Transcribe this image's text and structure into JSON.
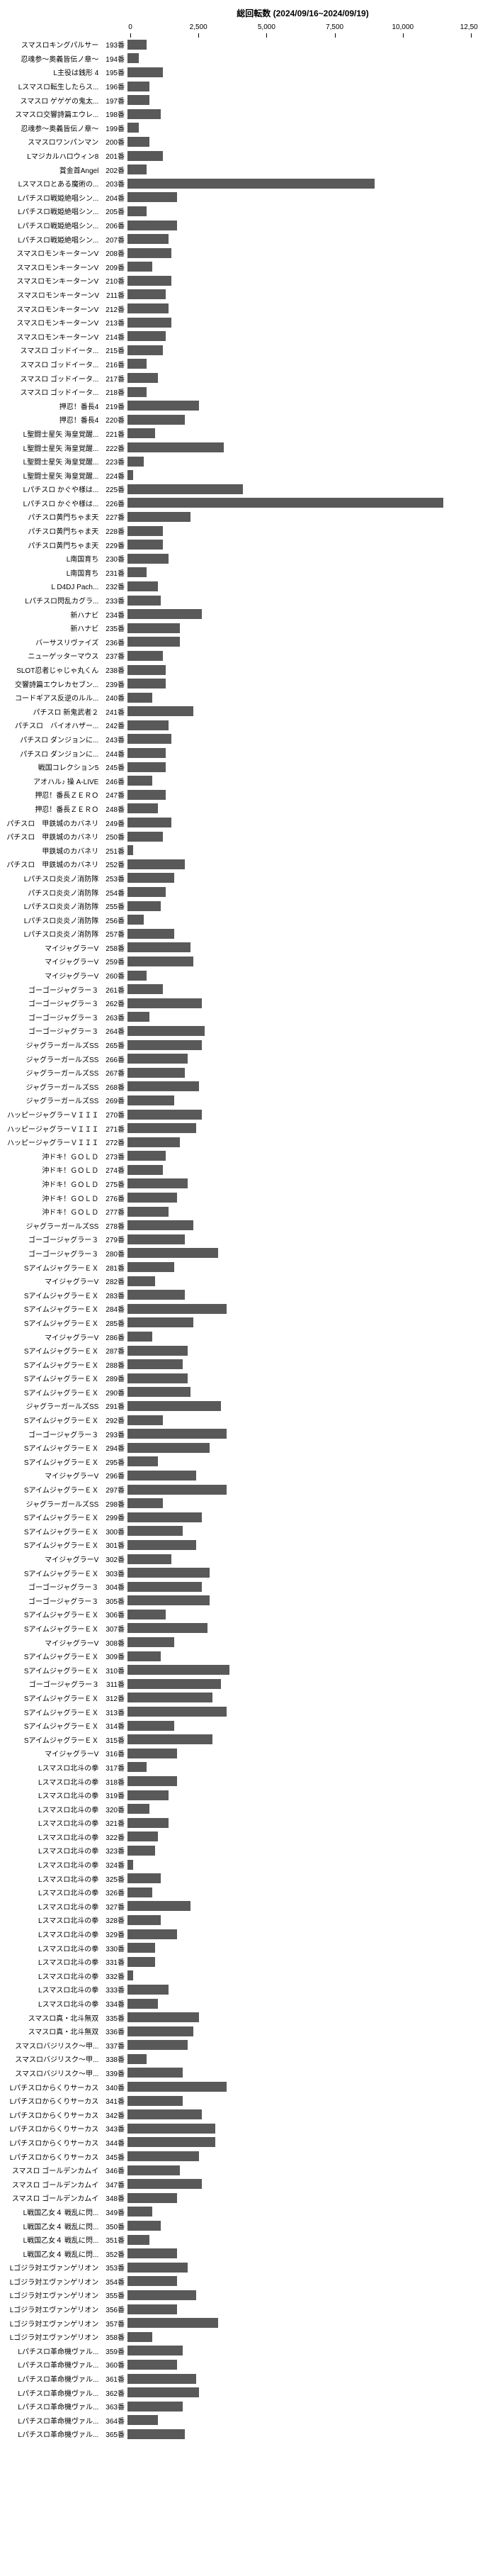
{
  "chart": {
    "type": "bar-horizontal",
    "title": "総回転数 (2024/09/16~2024/09/19)",
    "xlim": [
      0,
      12500
    ],
    "xticks": [
      0,
      2500,
      5000,
      7500,
      10000,
      12500
    ],
    "bar_color": "#595959",
    "background_color": "#ffffff",
    "label_fontsize": 10,
    "title_fontsize": 12,
    "rows": [
      {
        "label": "スマスロキングパルサー",
        "num": "193番",
        "value": 700
      },
      {
        "label": "忍魂参～奥義皆伝ノ章～",
        "num": "194番",
        "value": 400
      },
      {
        "label": "L主役は銭形 4",
        "num": "195番",
        "value": 1300
      },
      {
        "label": "Lスマスロ転生したらス...",
        "num": "196番",
        "value": 800
      },
      {
        "label": "スマスロ ゲゲゲの鬼太...",
        "num": "197番",
        "value": 800
      },
      {
        "label": "スマスロ交響詩篇エウレ...",
        "num": "198番",
        "value": 1200
      },
      {
        "label": "忍魂参～奥義皆伝ノ章～",
        "num": "199番",
        "value": 400
      },
      {
        "label": "スマスロワンパンマン",
        "num": "200番",
        "value": 800
      },
      {
        "label": "Lマジカルハロウィン8",
        "num": "201番",
        "value": 1300
      },
      {
        "label": "賞金首Angel",
        "num": "202番",
        "value": 700
      },
      {
        "label": "Lスマスロとある魔術の...",
        "num": "203番",
        "value": 9000
      },
      {
        "label": "Lパチスロ戦姫絶唱シン...",
        "num": "204番",
        "value": 1800
      },
      {
        "label": "Lパチスロ戦姫絶唱シン...",
        "num": "205番",
        "value": 700
      },
      {
        "label": "Lパチスロ戦姫絶唱シン...",
        "num": "206番",
        "value": 1800
      },
      {
        "label": "Lパチスロ戦姫絶唱シン...",
        "num": "207番",
        "value": 1500
      },
      {
        "label": "スマスロモンキーターンV",
        "num": "208番",
        "value": 1600
      },
      {
        "label": "スマスロモンキーターンV",
        "num": "209番",
        "value": 900
      },
      {
        "label": "スマスロモンキーターンV",
        "num": "210番",
        "value": 1600
      },
      {
        "label": "スマスロモンキーターンV",
        "num": "211番",
        "value": 1400
      },
      {
        "label": "スマスロモンキーターンV",
        "num": "212番",
        "value": 1500
      },
      {
        "label": "スマスロモンキーターンV",
        "num": "213番",
        "value": 1600
      },
      {
        "label": "スマスロモンキーターンV",
        "num": "214番",
        "value": 1400
      },
      {
        "label": "スマスロ ゴッドイータ...",
        "num": "215番",
        "value": 1300
      },
      {
        "label": "スマスロ ゴッドイータ...",
        "num": "216番",
        "value": 700
      },
      {
        "label": "スマスロ ゴッドイータ...",
        "num": "217番",
        "value": 1100
      },
      {
        "label": "スマスロ ゴッドイータ...",
        "num": "218番",
        "value": 700
      },
      {
        "label": "押忍！番長4",
        "num": "219番",
        "value": 2600
      },
      {
        "label": "押忍！番長4",
        "num": "220番",
        "value": 2100
      },
      {
        "label": "L聖闘士星矢 海皇覚醒...",
        "num": "221番",
        "value": 1000
      },
      {
        "label": "L聖闘士星矢 海皇覚醒...",
        "num": "222番",
        "value": 3500
      },
      {
        "label": "L聖闘士星矢 海皇覚醒...",
        "num": "223番",
        "value": 600
      },
      {
        "label": "L聖闘士星矢 海皇覚醒...",
        "num": "224番",
        "value": 200
      },
      {
        "label": "Lパチスロ かぐや様は...",
        "num": "225番",
        "value": 4200
      },
      {
        "label": "Lパチスロ かぐや様は...",
        "num": "226番",
        "value": 11500
      },
      {
        "label": "パチスロ黄門ちゃま天",
        "num": "227番",
        "value": 2300
      },
      {
        "label": "パチスロ黄門ちゃま天",
        "num": "228番",
        "value": 1300
      },
      {
        "label": "パチスロ黄門ちゃま天",
        "num": "229番",
        "value": 1300
      },
      {
        "label": "L南国育ち",
        "num": "230番",
        "value": 1500
      },
      {
        "label": "L南国育ち",
        "num": "231番",
        "value": 700
      },
      {
        "label": "L D4DJ Pach...",
        "num": "232番",
        "value": 1100
      },
      {
        "label": "Lパチスロ閃乱カグラ...",
        "num": "233番",
        "value": 1200
      },
      {
        "label": "新ハナビ",
        "num": "234番",
        "value": 2700
      },
      {
        "label": "新ハナビ",
        "num": "235番",
        "value": 1900
      },
      {
        "label": "バーサスリヴァイズ",
        "num": "236番",
        "value": 1900
      },
      {
        "label": "ニューゲッターマウス",
        "num": "237番",
        "value": 1300
      },
      {
        "label": "SLOT忍者じゃじゃ丸くん",
        "num": "238番",
        "value": 1400
      },
      {
        "label": "交響詩篇エウレカセブン...",
        "num": "239番",
        "value": 1400
      },
      {
        "label": "コードギアス反逆のルル...",
        "num": "240番",
        "value": 900
      },
      {
        "label": "パチスロ 新鬼武者２",
        "num": "241番",
        "value": 2400
      },
      {
        "label": "パチスロ　バイオハザー...",
        "num": "242番",
        "value": 1500
      },
      {
        "label": "パチスロ ダンジョンに...",
        "num": "243番",
        "value": 1600
      },
      {
        "label": "パチスロ ダンジョンに...",
        "num": "244番",
        "value": 1400
      },
      {
        "label": "戦国コレクション5",
        "num": "245番",
        "value": 1400
      },
      {
        "label": "アオハル♪ 操 A-LIVE",
        "num": "246番",
        "value": 900
      },
      {
        "label": "押忍！番長ＺＥＲＯ",
        "num": "247番",
        "value": 1400
      },
      {
        "label": "押忍！番長ＺＥＲＯ",
        "num": "248番",
        "value": 1100
      },
      {
        "label": "パチスロ　甲鉄城のカバネリ",
        "num": "249番",
        "value": 1600
      },
      {
        "label": "パチスロ　甲鉄城のカバネリ",
        "num": "250番",
        "value": 1300
      },
      {
        "label": "甲鉄城のカバネリ",
        "num": "251番",
        "value": 200
      },
      {
        "label": "パチスロ　甲鉄城のカバネリ",
        "num": "252番",
        "value": 2100
      },
      {
        "label": "Lパチスロ炎炎ノ消防隊",
        "num": "253番",
        "value": 1700
      },
      {
        "label": "パチスロ炎炎ノ消防隊",
        "num": "254番",
        "value": 1400
      },
      {
        "label": "Lパチスロ炎炎ノ消防隊",
        "num": "255番",
        "value": 1200
      },
      {
        "label": "Lパチスロ炎炎ノ消防隊",
        "num": "256番",
        "value": 600
      },
      {
        "label": "Lパチスロ炎炎ノ消防隊",
        "num": "257番",
        "value": 1700
      },
      {
        "label": "マイジャグラーV",
        "num": "258番",
        "value": 2300
      },
      {
        "label": "マイジャグラーV",
        "num": "259番",
        "value": 2400
      },
      {
        "label": "マイジャグラーV",
        "num": "260番",
        "value": 700
      },
      {
        "label": "ゴーゴージャグラー３",
        "num": "261番",
        "value": 1300
      },
      {
        "label": "ゴーゴージャグラー３",
        "num": "262番",
        "value": 2700
      },
      {
        "label": "ゴーゴージャグラー３",
        "num": "263番",
        "value": 800
      },
      {
        "label": "ゴーゴージャグラー３",
        "num": "264番",
        "value": 2800
      },
      {
        "label": "ジャグラーガールズSS",
        "num": "265番",
        "value": 2700
      },
      {
        "label": "ジャグラーガールズSS",
        "num": "266番",
        "value": 2200
      },
      {
        "label": "ジャグラーガールズSS",
        "num": "267番",
        "value": 2100
      },
      {
        "label": "ジャグラーガールズSS",
        "num": "268番",
        "value": 2600
      },
      {
        "label": "ジャグラーガールズSS",
        "num": "269番",
        "value": 1700
      },
      {
        "label": "ハッピージャグラーＶＩＩＩ",
        "num": "270番",
        "value": 2700
      },
      {
        "label": "ハッピージャグラーＶＩＩＩ",
        "num": "271番",
        "value": 2500
      },
      {
        "label": "ハッピージャグラーＶＩＩＩ",
        "num": "272番",
        "value": 1900
      },
      {
        "label": "沖ドキ！ＧＯＬＤ",
        "num": "273番",
        "value": 1400
      },
      {
        "label": "沖ドキ！ＧＯＬＤ",
        "num": "274番",
        "value": 1300
      },
      {
        "label": "沖ドキ！ＧＯＬＤ",
        "num": "275番",
        "value": 2200
      },
      {
        "label": "沖ドキ！ＧＯＬＤ",
        "num": "276番",
        "value": 1800
      },
      {
        "label": "沖ドキ！ＧＯＬＤ",
        "num": "277番",
        "value": 1500
      },
      {
        "label": "ジャグラーガールズSS",
        "num": "278番",
        "value": 2400
      },
      {
        "label": "ゴーゴージャグラー３",
        "num": "279番",
        "value": 2100
      },
      {
        "label": "ゴーゴージャグラー３",
        "num": "280番",
        "value": 3300
      },
      {
        "label": "SアイムジャグラーＥＸ",
        "num": "281番",
        "value": 1700
      },
      {
        "label": "マイジャグラーV",
        "num": "282番",
        "value": 1000
      },
      {
        "label": "SアイムジャグラーＥＸ",
        "num": "283番",
        "value": 2100
      },
      {
        "label": "SアイムジャグラーＥＸ",
        "num": "284番",
        "value": 3600
      },
      {
        "label": "SアイムジャグラーＥＸ",
        "num": "285番",
        "value": 2400
      },
      {
        "label": "マイジャグラーV",
        "num": "286番",
        "value": 900
      },
      {
        "label": "SアイムジャグラーＥＸ",
        "num": "287番",
        "value": 2200
      },
      {
        "label": "SアイムジャグラーＥＸ",
        "num": "288番",
        "value": 2000
      },
      {
        "label": "SアイムジャグラーＥＸ",
        "num": "289番",
        "value": 2200
      },
      {
        "label": "SアイムジャグラーＥＸ",
        "num": "290番",
        "value": 2300
      },
      {
        "label": "ジャグラーガールズSS",
        "num": "291番",
        "value": 3400
      },
      {
        "label": "SアイムジャグラーＥＸ",
        "num": "292番",
        "value": 1300
      },
      {
        "label": "ゴーゴージャグラー３",
        "num": "293番",
        "value": 3600
      },
      {
        "label": "SアイムジャグラーＥＸ",
        "num": "294番",
        "value": 3000
      },
      {
        "label": "SアイムジャグラーＥＸ",
        "num": "295番",
        "value": 1100
      },
      {
        "label": "マイジャグラーV",
        "num": "296番",
        "value": 2500
      },
      {
        "label": "SアイムジャグラーＥＸ",
        "num": "297番",
        "value": 3600
      },
      {
        "label": "ジャグラーガールズSS",
        "num": "298番",
        "value": 1300
      },
      {
        "label": "SアイムジャグラーＥＸ",
        "num": "299番",
        "value": 2700
      },
      {
        "label": "SアイムジャグラーＥＸ",
        "num": "300番",
        "value": 2000
      },
      {
        "label": "SアイムジャグラーＥＸ",
        "num": "301番",
        "value": 2500
      },
      {
        "label": "マイジャグラーV",
        "num": "302番",
        "value": 1600
      },
      {
        "label": "SアイムジャグラーＥＸ",
        "num": "303番",
        "value": 3000
      },
      {
        "label": "ゴーゴージャグラー３",
        "num": "304番",
        "value": 2700
      },
      {
        "label": "ゴーゴージャグラー３",
        "num": "305番",
        "value": 3000
      },
      {
        "label": "SアイムジャグラーＥＸ",
        "num": "306番",
        "value": 1400
      },
      {
        "label": "SアイムジャグラーＥＸ",
        "num": "307番",
        "value": 2900
      },
      {
        "label": "マイジャグラーV",
        "num": "308番",
        "value": 1700
      },
      {
        "label": "SアイムジャグラーＥＸ",
        "num": "309番",
        "value": 1200
      },
      {
        "label": "SアイムジャグラーＥＸ",
        "num": "310番",
        "value": 3700
      },
      {
        "label": "ゴーゴージャグラー３",
        "num": "311番",
        "value": 3400
      },
      {
        "label": "SアイムジャグラーＥＸ",
        "num": "312番",
        "value": 3100
      },
      {
        "label": "SアイムジャグラーＥＸ",
        "num": "313番",
        "value": 3600
      },
      {
        "label": "SアイムジャグラーＥＸ",
        "num": "314番",
        "value": 1700
      },
      {
        "label": "SアイムジャグラーＥＸ",
        "num": "315番",
        "value": 3100
      },
      {
        "label": "マイジャグラーV",
        "num": "316番",
        "value": 1800
      },
      {
        "label": "Lスマスロ北斗の拳",
        "num": "317番",
        "value": 700
      },
      {
        "label": "Lスマスロ北斗の拳",
        "num": "318番",
        "value": 1800
      },
      {
        "label": "Lスマスロ北斗の拳",
        "num": "319番",
        "value": 1500
      },
      {
        "label": "Lスマスロ北斗の拳",
        "num": "320番",
        "value": 800
      },
      {
        "label": "Lスマスロ北斗の拳",
        "num": "321番",
        "value": 1500
      },
      {
        "label": "Lスマスロ北斗の拳",
        "num": "322番",
        "value": 1100
      },
      {
        "label": "Lスマスロ北斗の拳",
        "num": "323番",
        "value": 1000
      },
      {
        "label": "Lスマスロ北斗の拳",
        "num": "324番",
        "value": 200
      },
      {
        "label": "Lスマスロ北斗の拳",
        "num": "325番",
        "value": 1200
      },
      {
        "label": "Lスマスロ北斗の拳",
        "num": "326番",
        "value": 900
      },
      {
        "label": "Lスマスロ北斗の拳",
        "num": "327番",
        "value": 2300
      },
      {
        "label": "Lスマスロ北斗の拳",
        "num": "328番",
        "value": 1200
      },
      {
        "label": "Lスマスロ北斗の拳",
        "num": "329番",
        "value": 1800
      },
      {
        "label": "Lスマスロ北斗の拳",
        "num": "330番",
        "value": 1000
      },
      {
        "label": "Lスマスロ北斗の拳",
        "num": "331番",
        "value": 1000
      },
      {
        "label": "Lスマスロ北斗の拳",
        "num": "332番",
        "value": 200
      },
      {
        "label": "Lスマスロ北斗の拳",
        "num": "333番",
        "value": 1500
      },
      {
        "label": "Lスマスロ北斗の拳",
        "num": "334番",
        "value": 1100
      },
      {
        "label": "スマスロ真・北斗無双",
        "num": "335番",
        "value": 2600
      },
      {
        "label": "スマスロ真・北斗無双",
        "num": "336番",
        "value": 2400
      },
      {
        "label": "スマスロバジリスク～甲...",
        "num": "337番",
        "value": 2200
      },
      {
        "label": "スマスロバジリスク～甲...",
        "num": "338番",
        "value": 700
      },
      {
        "label": "スマスロバジリスク～甲...",
        "num": "339番",
        "value": 2000
      },
      {
        "label": "Lパチスロからくりサーカス",
        "num": "340番",
        "value": 3600
      },
      {
        "label": "Lパチスロからくりサーカス",
        "num": "341番",
        "value": 2000
      },
      {
        "label": "Lパチスロからくりサーカス",
        "num": "342番",
        "value": 2700
      },
      {
        "label": "Lパチスロからくりサーカス",
        "num": "343番",
        "value": 3200
      },
      {
        "label": "Lパチスロからくりサーカス",
        "num": "344番",
        "value": 3200
      },
      {
        "label": "Lパチスロからくりサーカス",
        "num": "345番",
        "value": 2600
      },
      {
        "label": "スマスロ ゴールデンカムイ",
        "num": "346番",
        "value": 1900
      },
      {
        "label": "スマスロ ゴールデンカムイ",
        "num": "347番",
        "value": 2700
      },
      {
        "label": "スマスロ ゴールデンカムイ",
        "num": "348番",
        "value": 1800
      },
      {
        "label": "L戦国乙女４ 戦乱に閃...",
        "num": "349番",
        "value": 900
      },
      {
        "label": "L戦国乙女４ 戦乱に閃...",
        "num": "350番",
        "value": 1200
      },
      {
        "label": "L戦国乙女４ 戦乱に閃...",
        "num": "351番",
        "value": 800
      },
      {
        "label": "L戦国乙女４ 戦乱に閃...",
        "num": "352番",
        "value": 1800
      },
      {
        "label": "Lゴジラ対エヴァンゲリオン",
        "num": "353番",
        "value": 2200
      },
      {
        "label": "Lゴジラ対エヴァンゲリオン",
        "num": "354番",
        "value": 1800
      },
      {
        "label": "Lゴジラ対エヴァンゲリオン",
        "num": "355番",
        "value": 2500
      },
      {
        "label": "Lゴジラ対エヴァンゲリオン",
        "num": "356番",
        "value": 1800
      },
      {
        "label": "Lゴジラ対エヴァンゲリオン",
        "num": "357番",
        "value": 3300
      },
      {
        "label": "Lゴジラ対エヴァンゲリオン",
        "num": "358番",
        "value": 900
      },
      {
        "label": "Lパチスロ革命機ヴァル...",
        "num": "359番",
        "value": 2000
      },
      {
        "label": "Lパチスロ革命機ヴァル...",
        "num": "360番",
        "value": 1800
      },
      {
        "label": "Lパチスロ革命機ヴァル...",
        "num": "361番",
        "value": 2500
      },
      {
        "label": "Lパチスロ革命機ヴァル...",
        "num": "362番",
        "value": 2600
      },
      {
        "label": "Lパチスロ革命機ヴァル...",
        "num": "363番",
        "value": 2000
      },
      {
        "label": "Lパチスロ革命機ヴァル...",
        "num": "364番",
        "value": 1100
      },
      {
        "label": "Lパチスロ革命機ヴァル...",
        "num": "365番",
        "value": 2100
      }
    ]
  }
}
